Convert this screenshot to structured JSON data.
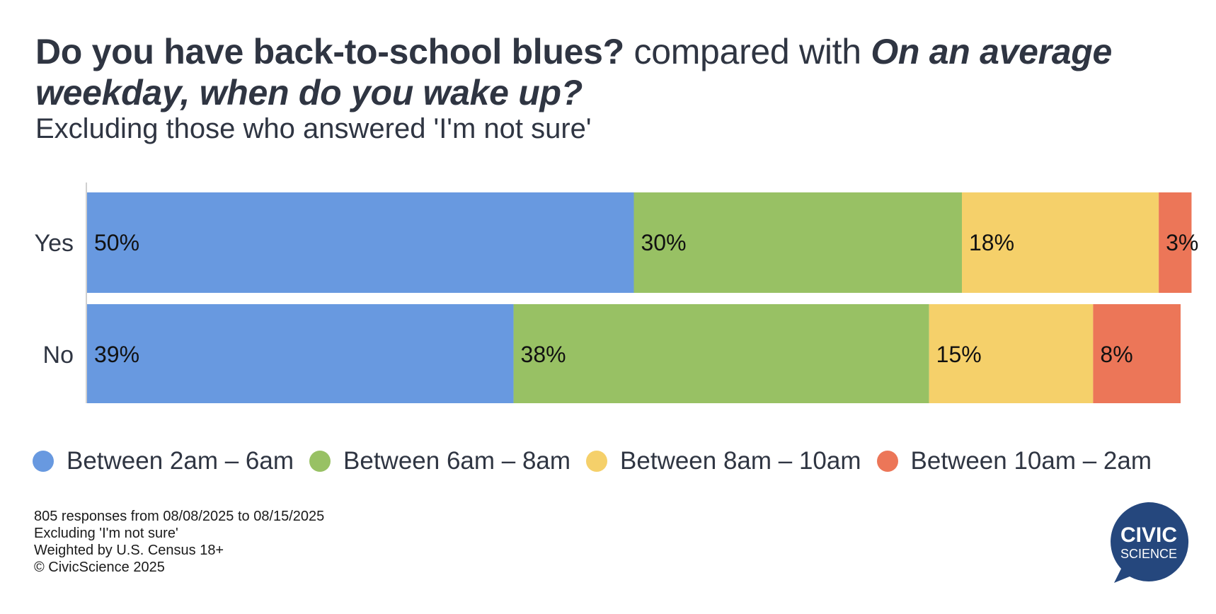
{
  "title": {
    "q1": "Do you have back-to-school blues?",
    "connector": " compared with ",
    "q2": "On an average weekday, when do you wake up?"
  },
  "subtitle": "Excluding those who answered 'I'm not sure'",
  "chart_data": {
    "type": "bar",
    "orientation": "horizontal",
    "stacked": true,
    "categories": [
      "Yes",
      "No"
    ],
    "series": [
      {
        "name": "Between 2am – 6am",
        "values": [
          50,
          39
        ],
        "labels": [
          "50%",
          "39%"
        ],
        "color": "#6899E0"
      },
      {
        "name": "Between 6am – 8am",
        "values": [
          30,
          38
        ],
        "labels": [
          "30%",
          "38%"
        ],
        "color": "#98C164"
      },
      {
        "name": "Between 8am – 10am",
        "values": [
          18,
          15
        ],
        "labels": [
          "18%",
          "15%"
        ],
        "color": "#F5D06A"
      },
      {
        "name": "Between 10am – 2am",
        "values": [
          3,
          8
        ],
        "labels": [
          "3%",
          "8%"
        ],
        "color": "#EC7658"
      }
    ],
    "xlim": [
      0,
      100
    ],
    "grid": false,
    "legend_position": "bottom"
  },
  "footnotes": [
    "805 responses from 08/08/2025 to 08/15/2025",
    "Excluding 'I'm not sure'",
    "Weighted by U.S. Census 18+",
    "© CivicScience 2025"
  ],
  "logo": {
    "line1": "CIVIC",
    "line2": "SCIENCE",
    "color": "#25477D"
  }
}
